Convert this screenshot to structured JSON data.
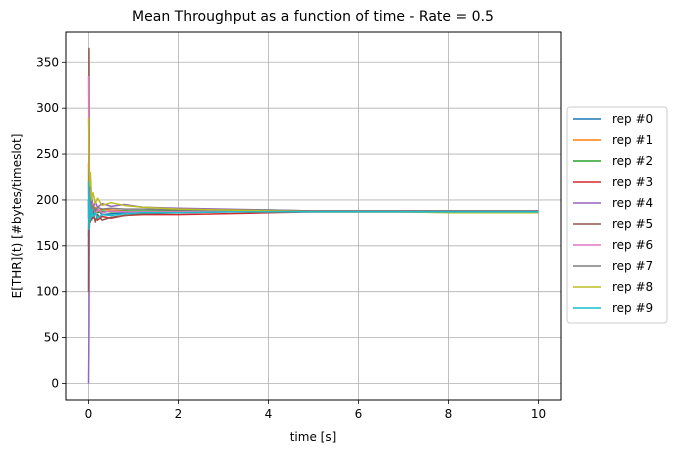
{
  "chart_data": {
    "type": "line",
    "title": "Mean Throughput as a function of time - Rate = 0.5",
    "xlabel": "time [s]",
    "ylabel": "E[THR](t) [#bytes/timeslot]",
    "xlim": [
      -0.5,
      10.5
    ],
    "ylim": [
      -18,
      383
    ],
    "xticks": [
      0,
      2,
      4,
      6,
      8,
      10
    ],
    "yticks": [
      0,
      50,
      100,
      150,
      200,
      250,
      300,
      350
    ],
    "grid": true,
    "legend_position": "outside-right",
    "series": [
      {
        "name": "rep #0",
        "color": "#1f77b4",
        "x": [
          0,
          0.01,
          0.02,
          0.04,
          0.07,
          0.1,
          0.15,
          0.2,
          0.3,
          0.5,
          0.8,
          1.2,
          2,
          3,
          4,
          5,
          6,
          7,
          8,
          9,
          10
        ],
        "y": [
          160,
          190,
          178,
          200,
          185,
          192,
          186,
          190,
          184,
          185,
          186,
          186,
          187,
          187,
          188,
          188,
          188,
          188,
          188,
          188,
          188
        ]
      },
      {
        "name": "rep #1",
        "color": "#ff7f0e",
        "x": [
          0,
          0.01,
          0.02,
          0.04,
          0.07,
          0.1,
          0.15,
          0.2,
          0.3,
          0.5,
          0.8,
          1.2,
          2,
          3,
          4,
          5,
          6,
          7,
          8,
          9,
          10
        ],
        "y": [
          240,
          170,
          210,
          182,
          198,
          186,
          192,
          188,
          190,
          189,
          188,
          187,
          187,
          188,
          188,
          187,
          187,
          187,
          187,
          187,
          187
        ]
      },
      {
        "name": "rep #2",
        "color": "#2ca02c",
        "x": [
          0,
          0.01,
          0.02,
          0.04,
          0.07,
          0.1,
          0.15,
          0.2,
          0.3,
          0.5,
          0.8,
          1.2,
          2,
          3,
          4,
          5,
          6,
          7,
          8,
          9,
          10
        ],
        "y": [
          150,
          175,
          200,
          180,
          193,
          184,
          190,
          186,
          188,
          187,
          188,
          188,
          188,
          188,
          188,
          188,
          188,
          188,
          188,
          188,
          188
        ]
      },
      {
        "name": "rep #3",
        "color": "#d62728",
        "x": [
          0,
          0.01,
          0.02,
          0.04,
          0.07,
          0.1,
          0.15,
          0.2,
          0.3,
          0.5,
          0.8,
          1.2,
          2,
          3,
          4,
          5,
          6,
          7,
          8,
          9,
          10
        ],
        "y": [
          200,
          160,
          215,
          176,
          196,
          180,
          188,
          178,
          182,
          180,
          183,
          184,
          184,
          185,
          186,
          187,
          187,
          187,
          187,
          187,
          187
        ]
      },
      {
        "name": "rep #4",
        "color": "#9467bd",
        "x": [
          0,
          0.01,
          0.02,
          0.04,
          0.07,
          0.1,
          0.15,
          0.2,
          0.3,
          0.5,
          0.8,
          1.2,
          2,
          3,
          4,
          5,
          6,
          7,
          8,
          9,
          10
        ],
        "y": [
          0,
          60,
          230,
          195,
          205,
          190,
          198,
          192,
          196,
          193,
          195,
          192,
          191,
          190,
          189,
          188,
          188,
          188,
          188,
          188,
          188
        ]
      },
      {
        "name": "rep #5",
        "color": "#8c564b",
        "x": [
          0,
          0.01,
          0.02,
          0.04,
          0.07,
          0.1,
          0.15,
          0.2,
          0.3,
          0.5,
          0.8,
          1.2,
          2,
          3,
          4,
          5,
          6,
          7,
          8,
          9,
          10
        ],
        "y": [
          100,
          365,
          170,
          225,
          178,
          188,
          176,
          184,
          178,
          181,
          183,
          185,
          186,
          187,
          188,
          188,
          188,
          188,
          188,
          188,
          188
        ]
      },
      {
        "name": "rep #6",
        "color": "#e377c2",
        "x": [
          0,
          0.01,
          0.02,
          0.04,
          0.07,
          0.1,
          0.15,
          0.2,
          0.3,
          0.5,
          0.8,
          1.2,
          2,
          3,
          4,
          5,
          6,
          7,
          8,
          9,
          10
        ],
        "y": [
          335,
          240,
          190,
          210,
          182,
          196,
          184,
          190,
          186,
          188,
          187,
          187,
          187,
          188,
          188,
          188,
          188,
          188,
          188,
          188,
          188
        ]
      },
      {
        "name": "rep #7",
        "color": "#7f7f7f",
        "x": [
          0,
          0.01,
          0.02,
          0.04,
          0.07,
          0.1,
          0.15,
          0.2,
          0.3,
          0.5,
          0.8,
          1.2,
          2,
          3,
          4,
          5,
          6,
          7,
          8,
          9,
          10
        ],
        "y": [
          180,
          220,
          175,
          202,
          186,
          194,
          188,
          192,
          190,
          191,
          190,
          190,
          189,
          189,
          189,
          188,
          188,
          188,
          188,
          188,
          188
        ]
      },
      {
        "name": "rep #8",
        "color": "#bcbd22",
        "x": [
          0,
          0.01,
          0.02,
          0.04,
          0.07,
          0.1,
          0.15,
          0.2,
          0.3,
          0.5,
          0.8,
          1.2,
          2,
          3,
          4,
          5,
          6,
          7,
          8,
          9,
          10
        ],
        "y": [
          290,
          250,
          215,
          230,
          200,
          208,
          196,
          202,
          194,
          197,
          194,
          192,
          190,
          189,
          188,
          187,
          187,
          187,
          186,
          186,
          186
        ]
      },
      {
        "name": "rep #9",
        "color": "#17becf",
        "x": [
          0,
          0.01,
          0.02,
          0.04,
          0.07,
          0.1,
          0.15,
          0.2,
          0.3,
          0.5,
          0.8,
          1.2,
          2,
          3,
          4,
          5,
          6,
          7,
          8,
          9,
          10
        ],
        "y": [
          220,
          168,
          205,
          178,
          190,
          182,
          186,
          180,
          184,
          183,
          185,
          186,
          186,
          187,
          187,
          187,
          187,
          187,
          187,
          187,
          187
        ]
      }
    ]
  }
}
